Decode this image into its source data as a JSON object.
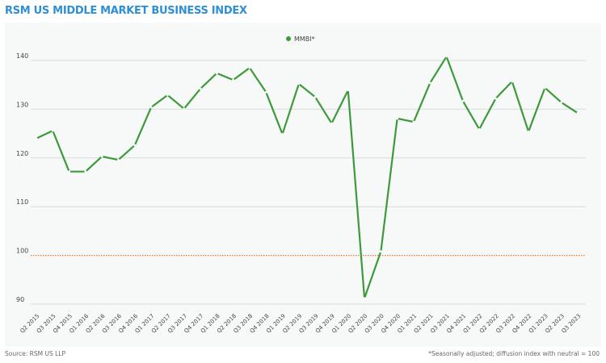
{
  "title": "RSM US MIDDLE MARKET BUSINESS INDEX",
  "source": "Source: RSM US LLP",
  "footnote": "*Seasonally adjusted; diffusion index with neutral = 100",
  "colors": {
    "line": "#3d9a3a",
    "neutral": "#f07a2a",
    "title": "#2d8fd5"
  },
  "chart_data": {
    "type": "line",
    "title": "RSM US MIDDLE MARKET BUSINESS INDEX",
    "categories": [
      "Q2 2015",
      "Q3 2015",
      "Q4 2015",
      "Q1 2016",
      "Q2 2016",
      "Q3 2016",
      "Q4 2016",
      "Q1 2017",
      "Q2 2017",
      "Q3 2017",
      "Q4 2017",
      "Q1 2018",
      "Q2 2018",
      "Q3 2018",
      "Q4 2018",
      "Q1 2019",
      "Q2 2019",
      "Q3 2019",
      "Q4 2019",
      "Q1 2020",
      "Q2 2020",
      "Q3 2020",
      "Q4 2020",
      "Q1 2021",
      "Q2 2021",
      "Q3 2021",
      "Q4 2021",
      "Q1 2022",
      "Q2 2022",
      "Q3 2022",
      "Q4 2022",
      "Q1 2023",
      "Q2 2023",
      "Q3 2023"
    ],
    "series": [
      {
        "name": "MMBI*",
        "values": [
          124.0,
          125.6,
          117.2,
          117.2,
          120.3,
          119.6,
          122.6,
          130.4,
          132.9,
          130.1,
          134.2,
          137.4,
          136.0,
          138.5,
          133.5,
          124.9,
          135.2,
          132.5,
          127.1,
          133.9,
          91.2,
          100.8,
          128.1,
          127.4,
          135.4,
          140.8,
          131.7,
          125.9,
          132.2,
          135.7,
          125.4,
          134.4,
          131.4,
          129.2
        ]
      }
    ],
    "reference_line": {
      "value": 100,
      "label": "neutral"
    },
    "yticks": [
      "90",
      "100",
      "110",
      "120",
      "130",
      "140"
    ],
    "ylim": [
      88,
      143
    ],
    "legend": "top-center",
    "grid": true
  }
}
